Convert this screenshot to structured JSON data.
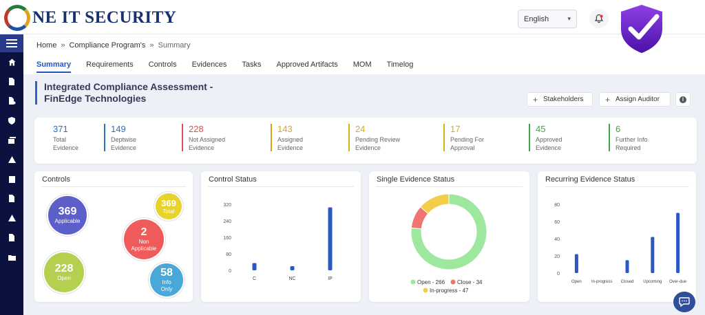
{
  "brand": {
    "logo_text": "NE IT SECURITY"
  },
  "topbar": {
    "language": "English"
  },
  "breadcrumb": [
    "Home",
    "Compliance Program's",
    "Summary"
  ],
  "tabs": [
    "Summary",
    "Requirements",
    "Controls",
    "Evidences",
    "Tasks",
    "Approved Artifacts",
    "MOM",
    "Timelog"
  ],
  "page": {
    "title_line1": "Integrated Compliance Assessment -",
    "title_line2": "FinEdge Technologies",
    "stakeholders_label": "Stakeholders",
    "assign_auditor_label": "Assign Auditor",
    "info_icon": "i"
  },
  "stats": [
    {
      "value": "371",
      "line1": "Total",
      "line2": "Evidence",
      "color": "#2a6fc4"
    },
    {
      "value": "149",
      "line1": "Deptwise",
      "line2": "Evidence",
      "color": "#2a6fc4"
    },
    {
      "value": "228",
      "line1": "Not Assigned",
      "line2": "Evidence",
      "color": "#d9534f"
    },
    {
      "value": "143",
      "line1": "Assigned",
      "line2": "Evidence",
      "color": "#e0a21b"
    },
    {
      "value": "24",
      "line1": "Pending Review",
      "line2": "Evidence",
      "color": "#d4b01c"
    },
    {
      "value": "17",
      "line1": "Pending For",
      "line2": "Approval",
      "color": "#d4b01c"
    },
    {
      "value": "45",
      "line1": "Approved",
      "line2": "Evidence",
      "color": "#3ea84a"
    },
    {
      "value": "6",
      "line1": "Further Info",
      "line2": "Required",
      "color": "#3ea84a"
    }
  ],
  "controls_card": {
    "title": "Controls",
    "bubbles": [
      {
        "value": "369",
        "label": "Applicable",
        "color": "#5b5fc7"
      },
      {
        "value": "369",
        "label": "Total",
        "color": "#e8d22c"
      },
      {
        "value": "2",
        "label": "Non Applicable",
        "color": "#ef5b5b"
      },
      {
        "value": "228",
        "label": "Open",
        "color": "#b5cf4f"
      },
      {
        "value": "58",
        "label": "Info Only",
        "color": "#4aa8d8"
      }
    ]
  },
  "control_status": {
    "title": "Control Status",
    "chart_data": {
      "type": "bar",
      "categories": [
        "C",
        "NC",
        "IP"
      ],
      "values": [
        35,
        20,
        305
      ],
      "yticks": [
        0,
        80,
        160,
        240,
        320
      ],
      "ylim": [
        0,
        320
      ],
      "color": "#2a58c4"
    }
  },
  "single_evidence": {
    "title": "Single Evidence Status",
    "chart_data": {
      "type": "pie",
      "labels": [
        "Open - 266",
        "Close - 34",
        "In-progress - 47"
      ],
      "values": [
        266,
        34,
        47
      ],
      "colors": [
        "#9ee79e",
        "#ef7670",
        "#f2cd4a"
      ]
    }
  },
  "recurring_evidence": {
    "title": "Recurring Evidence Status",
    "chart_data": {
      "type": "bar",
      "categories": [
        "Open",
        "In-progress",
        "Closed",
        "Upcoming",
        "Over-due"
      ],
      "values": [
        22,
        0,
        15,
        42,
        70
      ],
      "yticks": [
        0,
        20,
        40,
        60,
        80
      ],
      "ylim": [
        0,
        80
      ],
      "color": "#2a58c4"
    }
  }
}
